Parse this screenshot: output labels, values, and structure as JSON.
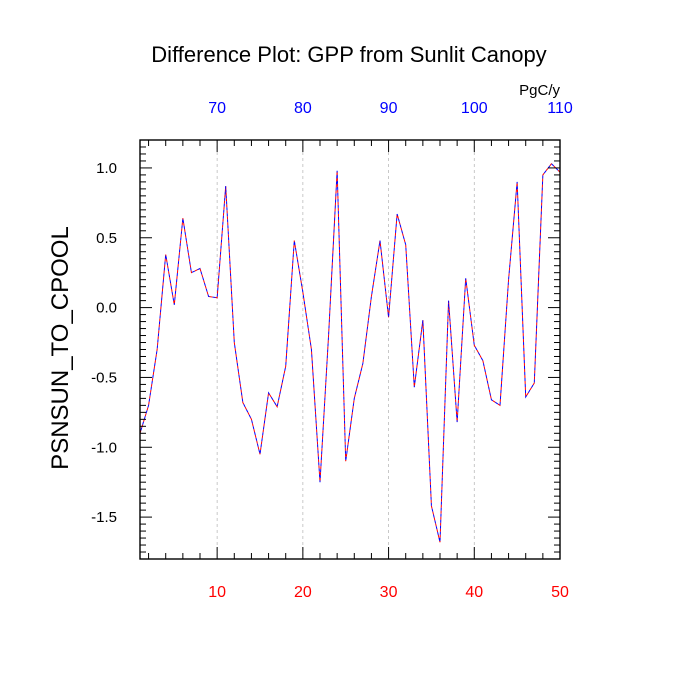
{
  "chart_data": {
    "type": "line",
    "title": "Difference Plot: GPP from Sunlit Canopy",
    "ylabel": "PSNSUN_TO_CPOOL",
    "top_axis_units": "PgC/y",
    "xlim": [
      1,
      50
    ],
    "ylim": [
      -1.8,
      1.2
    ],
    "grid": "vertical dashed gridlines at major bottom ticks",
    "x_ticks_bottom": [
      "10",
      "20",
      "30",
      "40",
      "50"
    ],
    "x_ticks_top": [
      "70",
      "80",
      "90",
      "100",
      "110"
    ],
    "y_ticks": [
      "1.0",
      "0.5",
      "0.0",
      "-0.5",
      "-1.0",
      "-1.5"
    ],
    "colors": {
      "series_dash_1": "#ff0000",
      "series_dash_2": "#0000ff",
      "bottom_axis_labels": "#ff0000",
      "top_axis_labels": "#0000ff",
      "gridline": "#bbbbbb"
    },
    "series": [
      {
        "x": [
          1,
          2,
          3,
          4,
          5,
          6,
          7,
          8,
          9,
          10,
          11,
          12,
          13,
          14,
          15,
          16,
          17,
          18,
          19,
          20,
          21,
          22,
          23,
          24,
          25,
          26,
          27,
          28,
          29,
          30,
          31,
          32,
          33,
          34,
          35,
          36,
          37,
          38,
          39,
          40,
          41,
          42,
          43,
          44,
          45,
          46,
          47,
          48,
          49,
          50
        ],
        "values": [
          -0.9,
          -0.7,
          -0.3,
          0.38,
          0.02,
          0.64,
          0.25,
          0.28,
          0.08,
          0.07,
          0.87,
          -0.25,
          -0.68,
          -0.8,
          -1.05,
          -0.61,
          -0.71,
          -0.42,
          0.48,
          0.11,
          -0.3,
          -1.25,
          -0.2,
          0.98,
          -1.1,
          -0.65,
          -0.4,
          0.08,
          0.48,
          -0.07,
          0.67,
          0.45,
          -0.57,
          -0.09,
          -1.42,
          -1.68,
          0.05,
          -0.82,
          0.21,
          -0.27,
          -0.38,
          -0.66,
          -0.7,
          0.2,
          0.9,
          -0.64,
          -0.54,
          0.95,
          1.03,
          0.97
        ]
      }
    ]
  }
}
